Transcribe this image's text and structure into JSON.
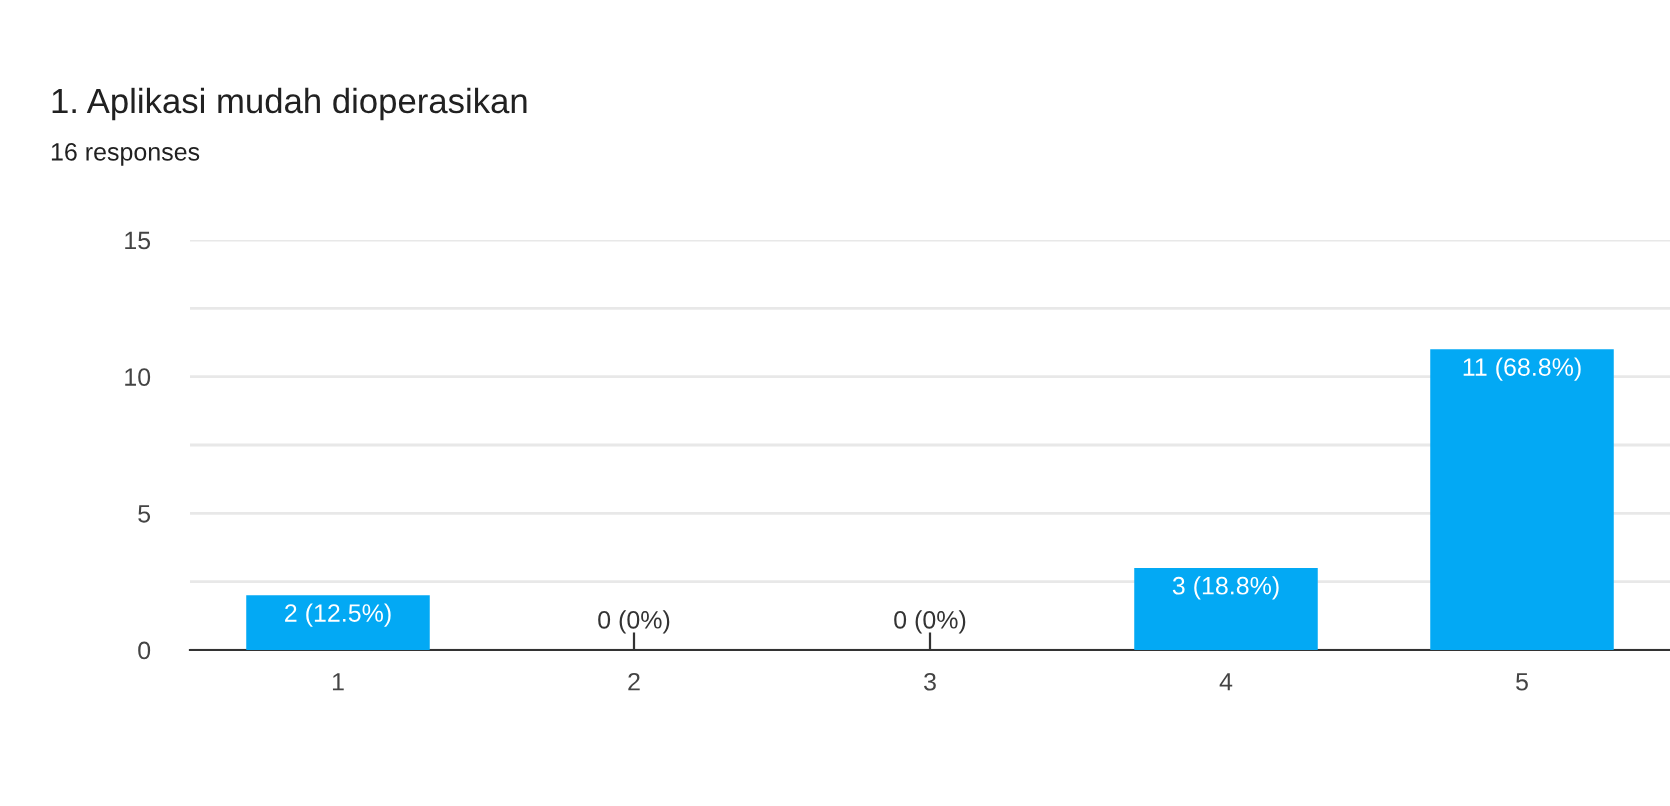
{
  "chart_data": {
    "type": "bar",
    "title": "1. Aplikasi mudah dioperasikan",
    "subtitle": "16 responses",
    "categories": [
      "1",
      "2",
      "3",
      "4",
      "5"
    ],
    "values": [
      2,
      0,
      0,
      3,
      11
    ],
    "value_labels": [
      "2 (12.5%)",
      "0 (0%)",
      "0 (0%)",
      "3 (18.8%)",
      "11 (68.8%)"
    ],
    "color": "#03a9f4",
    "ylim": [
      0,
      15
    ],
    "yticks": [
      0,
      {
        "value": 2.5,
        "label": null
      },
      5,
      {
        "value": 7.5,
        "label": null
      },
      10,
      {
        "value": 12.5,
        "label": null
      },
      15
    ],
    "grid": "y"
  }
}
